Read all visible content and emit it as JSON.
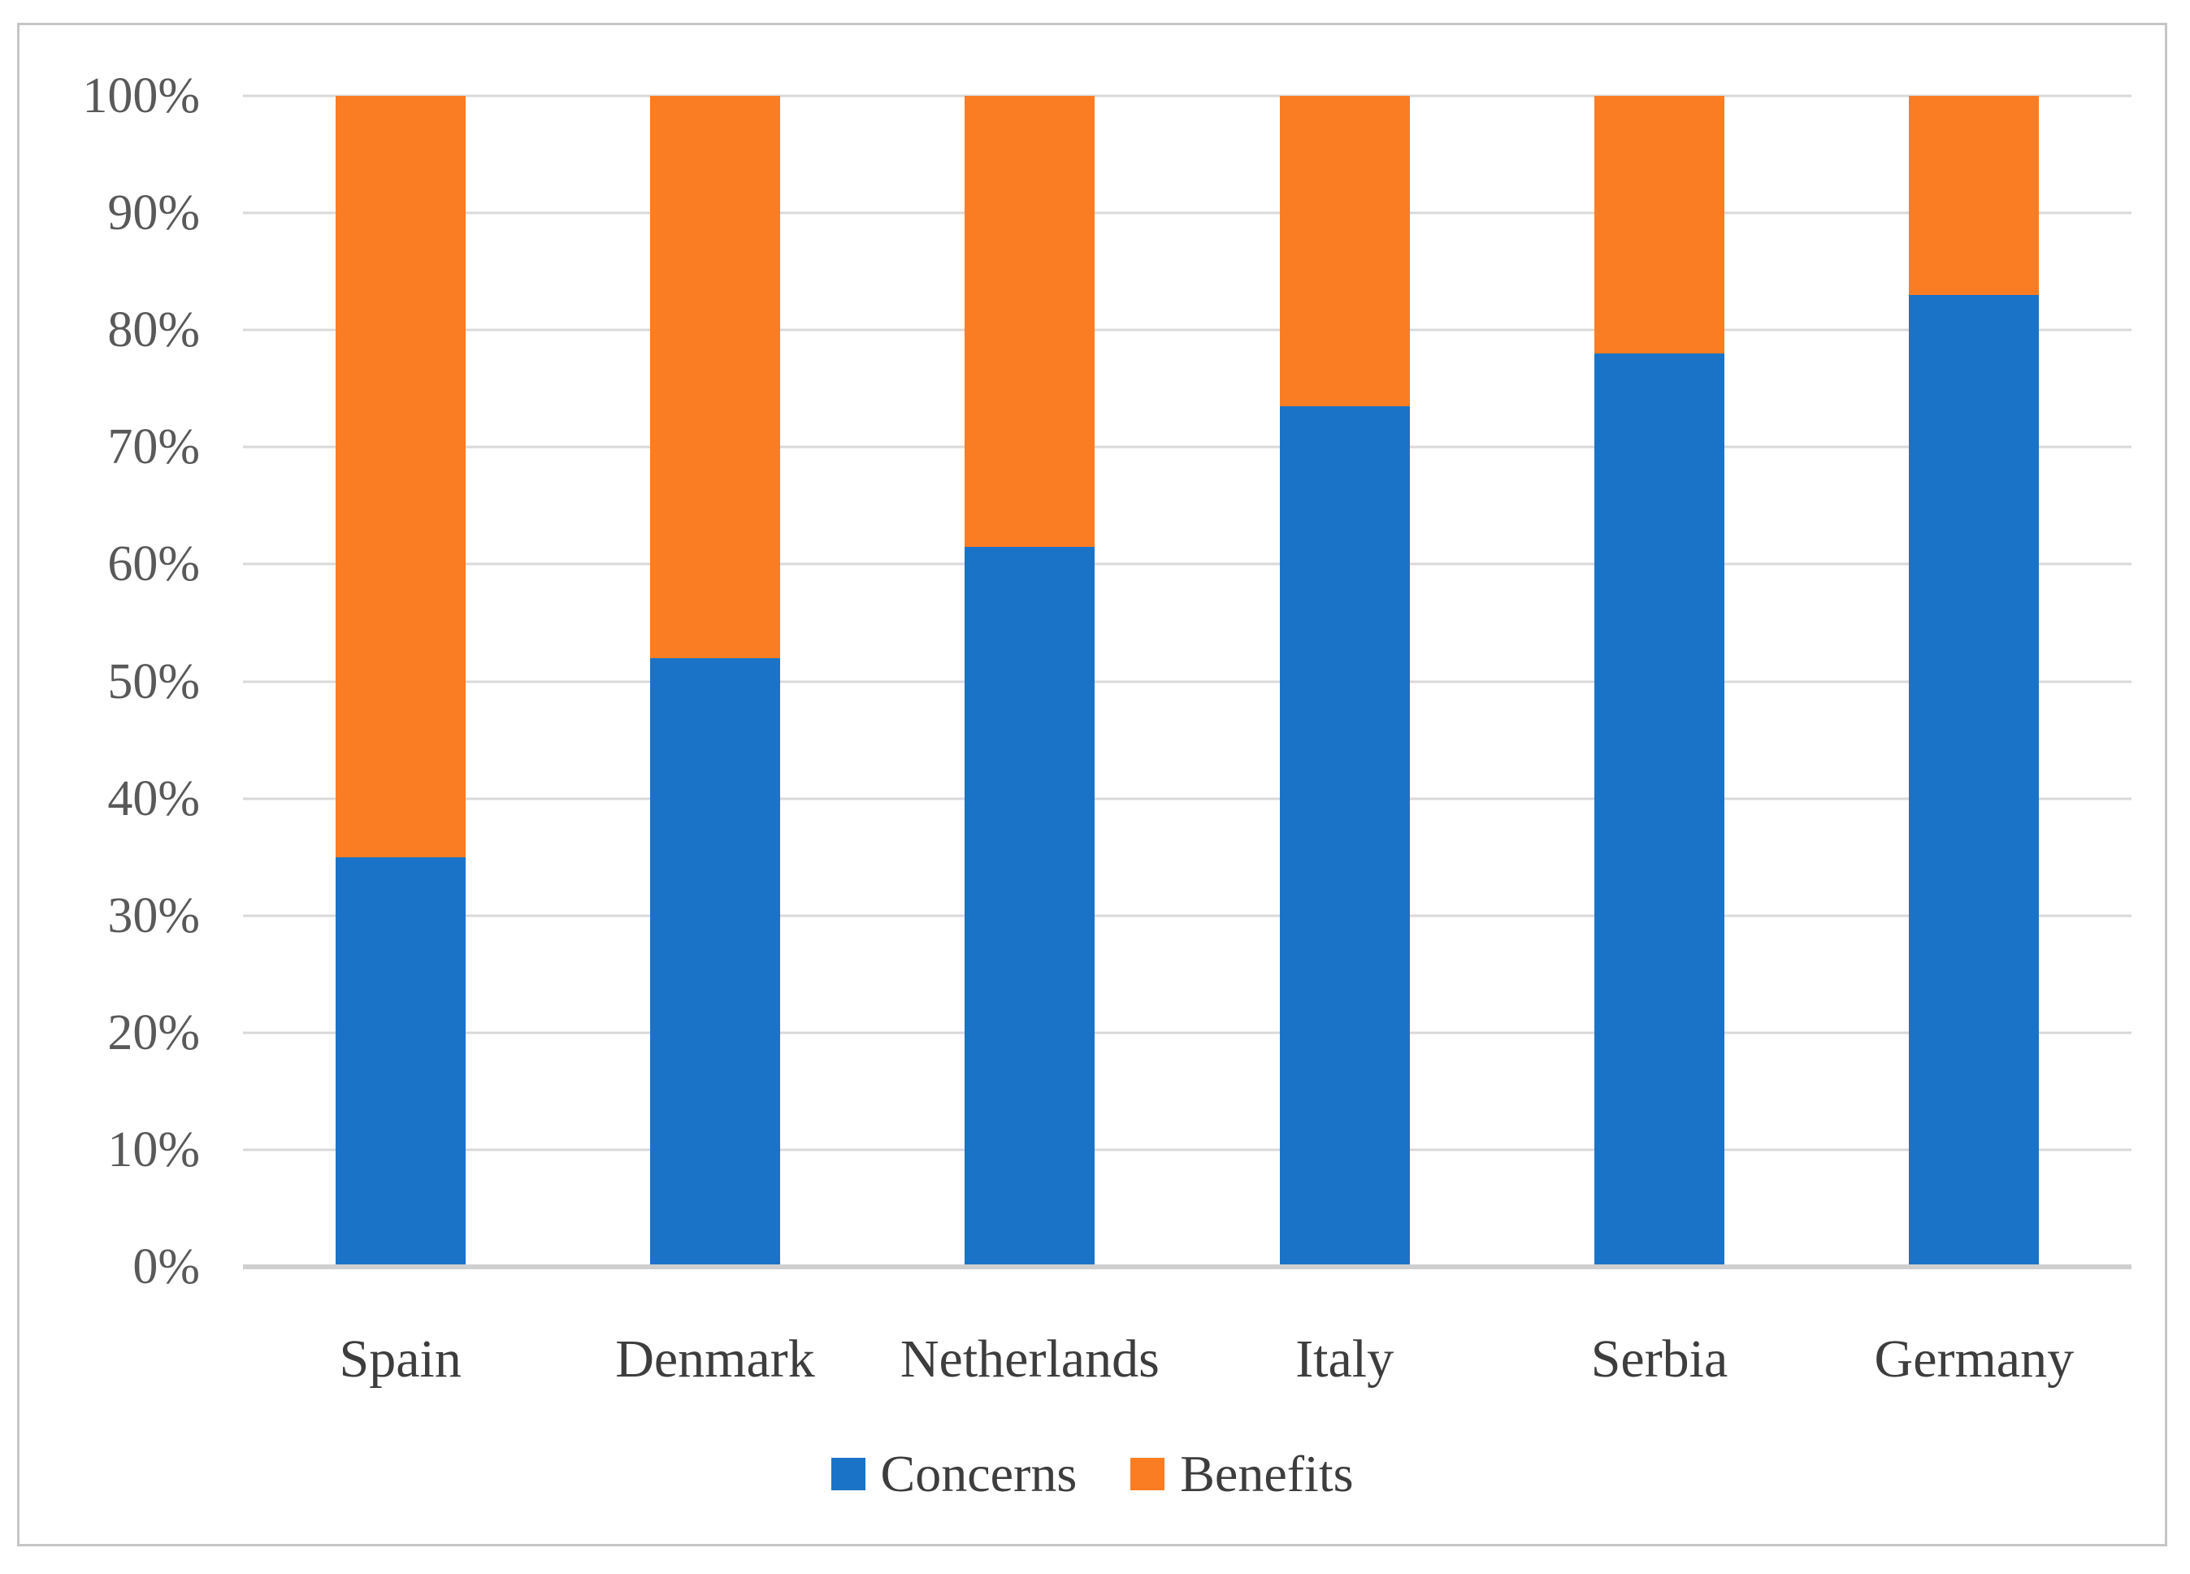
{
  "chart_data": {
    "type": "bar",
    "variant": "100%-stacked-column",
    "title": "",
    "xlabel": "",
    "ylabel": "",
    "categories": [
      "Spain",
      "Denmark",
      "Netherlands",
      "Italy",
      "Serbia",
      "Germany"
    ],
    "series": [
      {
        "name": "Concerns",
        "color": "#1b73c8",
        "values": [
          35,
          52,
          61.5,
          73.5,
          78,
          83
        ]
      },
      {
        "name": "Benefits",
        "color": "#fb7d23",
        "values": [
          65,
          48,
          38.5,
          26.5,
          22,
          17
        ]
      }
    ],
    "y_axis": {
      "min": 0,
      "max": 100,
      "step": 10,
      "unit": "%",
      "tick_labels": [
        "0%",
        "10%",
        "20%",
        "30%",
        "40%",
        "50%",
        "60%",
        "70%",
        "80%",
        "90%",
        "100%"
      ]
    },
    "grid": "horizontal",
    "legend_position": "bottom",
    "legend": [
      {
        "label": "Concerns",
        "color": "#1b73c8"
      },
      {
        "label": "Benefits",
        "color": "#fb7d23"
      }
    ]
  },
  "figure": {
    "background": "#ffffff",
    "frame_border_color": "#c6c6c6",
    "gridline_color": "#d9d9d9",
    "axis_line_color": "#cfcfcf",
    "tick_text_color": "#595959",
    "label_text_color": "#3d3d3d"
  }
}
